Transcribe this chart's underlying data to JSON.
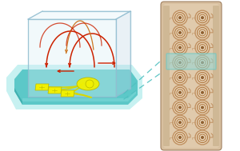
{
  "bg_color": "#ffffff",
  "teal_base_top": "#7dd8d8",
  "teal_base_mid": "#5cc8c8",
  "teal_base_edge": "#40b0b0",
  "teal_glow": "#b0ecec",
  "box_glass": "#d8eef5",
  "box_edge": "#90bdd0",
  "box_top": "#e8f5fa",
  "box_right": "#c0d8e8",
  "yellow": "#f0f000",
  "yellow_dark": "#b8b800",
  "yellow_line": "#d8d800",
  "red_flow": "#cc2200",
  "orange_path": "#cc7722",
  "cassette_bg": "#d8c0a0",
  "cassette_light": "#e8d4b8",
  "cassette_edge": "#a08060",
  "cassette_shadow": "#c0a880",
  "electrode_outer": "#c09060",
  "electrode_mid": "#b07840",
  "electrode_inner": "#906030",
  "electrode_fill": "#d4b080",
  "highlight_teal": "#60c8c8",
  "highlight_teal_fill": "#90d8d8",
  "dashed_color": "#50c0c0",
  "figsize": [
    3.0,
    1.89
  ],
  "dpi": 100
}
